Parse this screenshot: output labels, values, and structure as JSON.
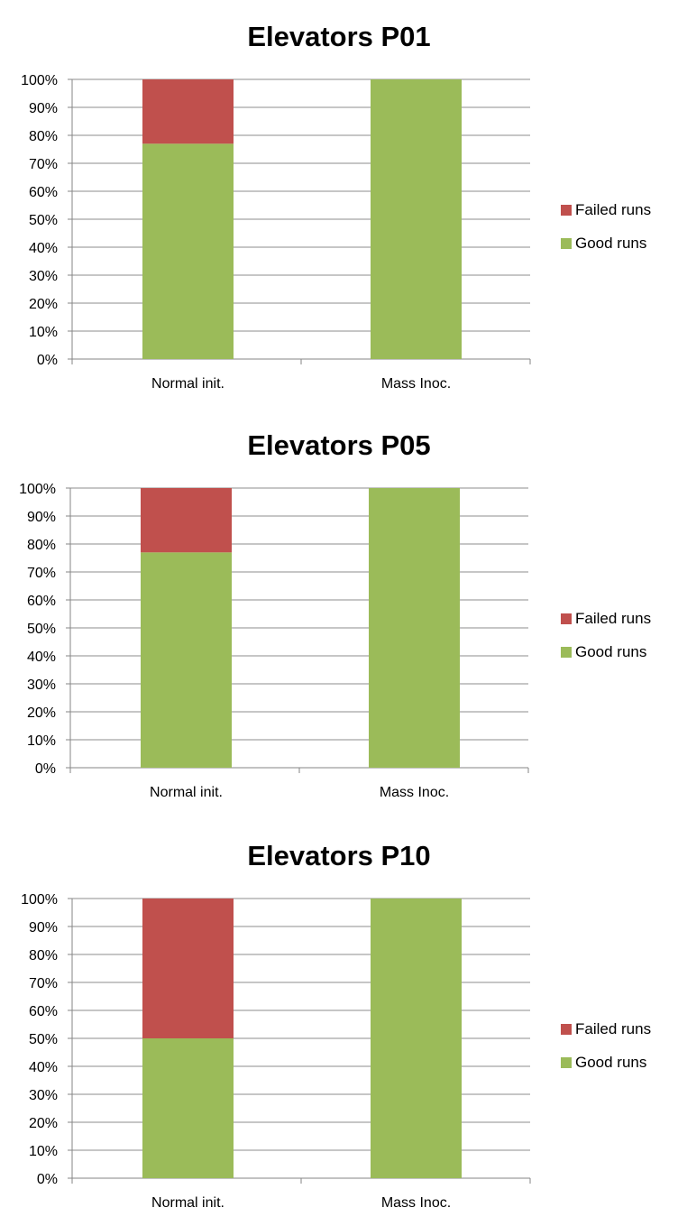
{
  "chart_data": [
    {
      "type": "bar",
      "stacked": true,
      "title": "Elevators P01",
      "categories": [
        "Normal init.",
        "Mass Inoc."
      ],
      "series": [
        {
          "name": "Good runs",
          "values": [
            77,
            100
          ],
          "color": "#9BBB59"
        },
        {
          "name": "Failed runs",
          "values": [
            23,
            0
          ],
          "color": "#C0504D"
        }
      ],
      "y_ticks": [
        "0%",
        "10%",
        "20%",
        "30%",
        "40%",
        "50%",
        "60%",
        "70%",
        "80%",
        "90%",
        "100%"
      ],
      "ylim": [
        0,
        100
      ],
      "grid": true,
      "legend_position": "right"
    },
    {
      "type": "bar",
      "stacked": true,
      "title": "Elevators P05",
      "categories": [
        "Normal init.",
        "Mass Inoc."
      ],
      "series": [
        {
          "name": "Good runs",
          "values": [
            77,
            100
          ],
          "color": "#9BBB59"
        },
        {
          "name": "Failed runs",
          "values": [
            23,
            0
          ],
          "color": "#C0504D"
        }
      ],
      "y_ticks": [
        "0%",
        "10%",
        "20%",
        "30%",
        "40%",
        "50%",
        "60%",
        "70%",
        "80%",
        "90%",
        "100%"
      ],
      "ylim": [
        0,
        100
      ],
      "grid": true,
      "legend_position": "right"
    },
    {
      "type": "bar",
      "stacked": true,
      "title": "Elevators P10",
      "categories": [
        "Normal init.",
        "Mass Inoc."
      ],
      "series": [
        {
          "name": "Good runs",
          "values": [
            50,
            100
          ],
          "color": "#9BBB59"
        },
        {
          "name": "Failed runs",
          "values": [
            50,
            0
          ],
          "color": "#C0504D"
        }
      ],
      "y_ticks": [
        "0%",
        "10%",
        "20%",
        "30%",
        "40%",
        "50%",
        "60%",
        "70%",
        "80%",
        "90%",
        "100%"
      ],
      "ylim": [
        0,
        100
      ],
      "grid": true,
      "legend_position": "right"
    }
  ]
}
